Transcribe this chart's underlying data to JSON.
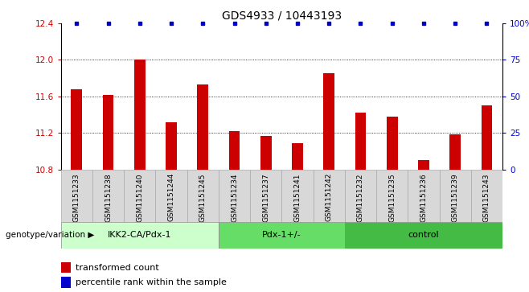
{
  "title": "GDS4933 / 10443193",
  "samples": [
    "GSM1151233",
    "GSM1151238",
    "GSM1151240",
    "GSM1151244",
    "GSM1151245",
    "GSM1151234",
    "GSM1151237",
    "GSM1151241",
    "GSM1151242",
    "GSM1151232",
    "GSM1151235",
    "GSM1151236",
    "GSM1151239",
    "GSM1151243"
  ],
  "bar_values": [
    11.68,
    11.62,
    12.0,
    11.32,
    11.73,
    11.22,
    11.17,
    11.09,
    11.85,
    11.42,
    11.38,
    10.9,
    11.18,
    11.5
  ],
  "percentile_values": [
    100,
    100,
    100,
    100,
    100,
    100,
    100,
    100,
    100,
    100,
    100,
    100,
    100,
    100
  ],
  "ylim_left": [
    10.8,
    12.4
  ],
  "ylim_right": [
    0,
    100
  ],
  "yticks_left": [
    10.8,
    11.2,
    11.6,
    12.0,
    12.4
  ],
  "yticks_right": [
    0,
    25,
    50,
    75,
    100
  ],
  "ytick_labels_right": [
    "0",
    "25",
    "50",
    "75",
    "100%"
  ],
  "groups": [
    {
      "label": "IKK2-CA/Pdx-1",
      "start": 0,
      "end": 5,
      "color": "#ccffcc"
    },
    {
      "label": "Pdx-1+/-",
      "start": 5,
      "end": 9,
      "color": "#66dd66"
    },
    {
      "label": "control",
      "start": 9,
      "end": 14,
      "color": "#44bb44"
    }
  ],
  "bar_color": "#cc0000",
  "dot_color": "#0000cc",
  "bar_bottom": 10.8,
  "background_color": "#ffffff",
  "xlabel_genotype": "genotype/variation",
  "legend_bar": "transformed count",
  "legend_dot": "percentile rank within the sample"
}
